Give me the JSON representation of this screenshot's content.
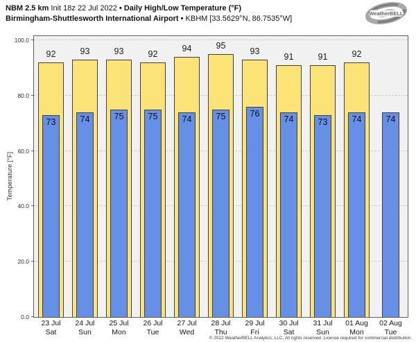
{
  "header": {
    "title_model": "NBM 2.5 km",
    "title_init": "Init 18z 22 Jul 2022",
    "separator": "•",
    "title_product": "Daily High/Low Temperature (°F)",
    "station_name": "Birmingham-Shuttlesworth International Airport",
    "station_id": "KBHM [33.5629°N, 86.7535°W]",
    "logo_text": "WeatherBELL"
  },
  "footer": {
    "copyright": "© 2022 WeatherBELL Analytics, LLC. All rights reserved. License required for commercial distribution."
  },
  "colors": {
    "high_bar_fill": "#FBE377",
    "low_bar_fill": "#6590E5",
    "bar_border": "#3f3f3f",
    "plot_background": "#f1f1f1",
    "gridline": "#c9c9c9"
  },
  "chart_data": {
    "type": "bar",
    "title": "NBM 2.5 km Daily High/Low Temperature (°F) — Birmingham-Shuttlesworth International Airport (KBHM)",
    "xlabel": "",
    "ylabel": "Temperature [°F]",
    "ylim": [
      0,
      101.5
    ],
    "yticks": [
      0,
      20,
      40,
      60,
      80,
      100
    ],
    "ytick_labels": [
      "0.0",
      "20.0",
      "40.0",
      "60.0",
      "80.0",
      "100.0"
    ],
    "grid": "horizontal dashed",
    "legend_position": "none",
    "categories": [
      "23 Jul Sat",
      "24 Jul Sun",
      "25 Jul Mon",
      "26 Jul Tue",
      "27 Jul Wed",
      "28 Jul Thu",
      "29 Jul Fri",
      "30 Jul Sat",
      "31 Jul Sun",
      "01 Aug Mon",
      "02 Aug Tue"
    ],
    "series": [
      {
        "name": "Daily High",
        "color": "#FBE377",
        "values": [
          92,
          93,
          93,
          92,
          94,
          95,
          93,
          91,
          91,
          92,
          null
        ]
      },
      {
        "name": "Daily Low",
        "color": "#6590E5",
        "values": [
          73,
          74,
          75,
          75,
          74,
          75,
          76,
          74,
          73,
          74,
          74
        ]
      }
    ],
    "days": [
      {
        "date": "23 Jul",
        "weekday": "Sat",
        "high": 92,
        "low": 73
      },
      {
        "date": "24 Jul",
        "weekday": "Sun",
        "high": 93,
        "low": 74
      },
      {
        "date": "25 Jul",
        "weekday": "Mon",
        "high": 93,
        "low": 75
      },
      {
        "date": "26 Jul",
        "weekday": "Tue",
        "high": 92,
        "low": 75
      },
      {
        "date": "27 Jul",
        "weekday": "Wed",
        "high": 94,
        "low": 74
      },
      {
        "date": "28 Jul",
        "weekday": "Thu",
        "high": 95,
        "low": 75
      },
      {
        "date": "29 Jul",
        "weekday": "Fri",
        "high": 93,
        "low": 76
      },
      {
        "date": "30 Jul",
        "weekday": "Sat",
        "high": 91,
        "low": 74
      },
      {
        "date": "31 Jul",
        "weekday": "Sun",
        "high": 91,
        "low": 73
      },
      {
        "date": "01 Aug",
        "weekday": "Mon",
        "high": 92,
        "low": 74
      },
      {
        "date": "02 Aug",
        "weekday": "Tue",
        "high": null,
        "low": 74
      }
    ]
  }
}
